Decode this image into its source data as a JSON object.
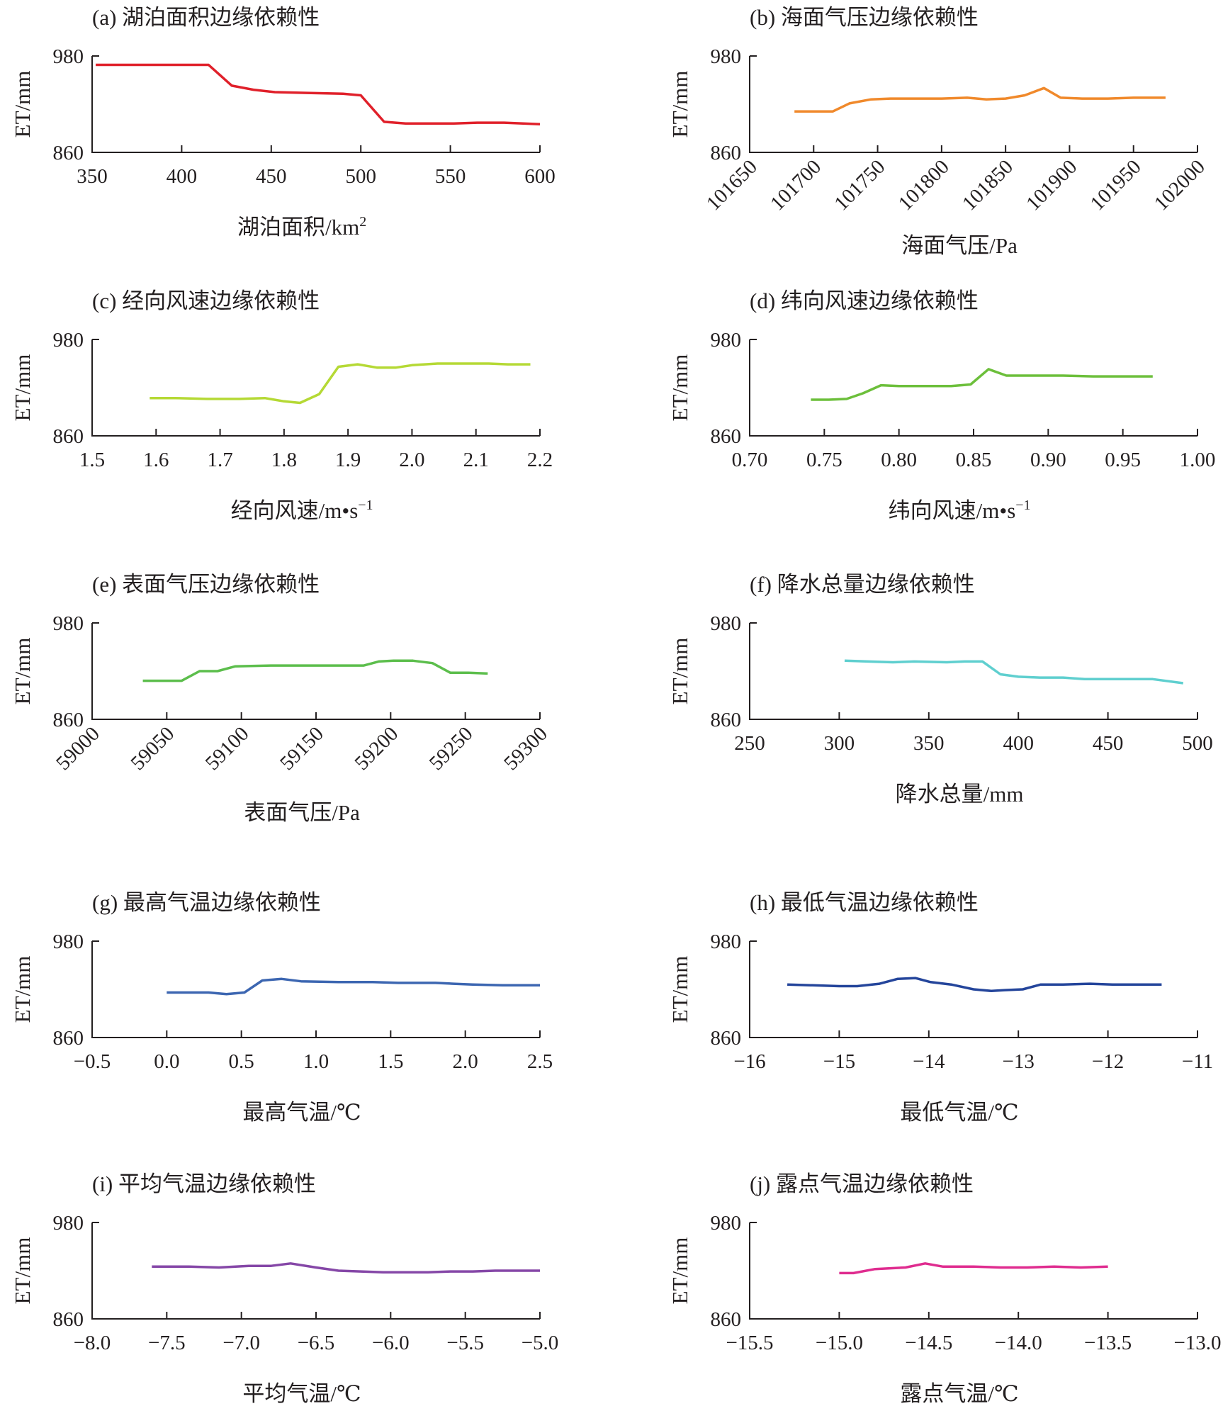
{
  "chart_data": [
    {
      "type": "line",
      "title": "(a) 湖泊面积边缘依赖性",
      "xlabel": "湖泊面积/km",
      "xlabel_sup": "2",
      "ylabel": "ET/mm",
      "xlim": [
        350,
        600
      ],
      "ylim": [
        860,
        980
      ],
      "xticks": [
        350,
        400,
        450,
        500,
        550,
        600
      ],
      "xtick_labels": [
        "350",
        "400",
        "450",
        "500",
        "550",
        "600"
      ],
      "yticks": [
        860,
        980
      ],
      "rotated_xticks": false,
      "color": "#e0202a",
      "x": [
        352,
        380,
        400,
        415,
        428,
        440,
        452,
        470,
        490,
        500,
        513,
        525,
        540,
        552,
        565,
        580,
        600
      ],
      "y": [
        969,
        969,
        969,
        969,
        943,
        938,
        935,
        934,
        933,
        931,
        898,
        896,
        896,
        896,
        897,
        897,
        895
      ]
    },
    {
      "type": "line",
      "title": "(b) 海面气压边缘依赖性",
      "xlabel": "海面气压/Pa",
      "ylabel": "ET/mm",
      "xlim": [
        101650,
        102000
      ],
      "ylim": [
        860,
        980
      ],
      "xticks": [
        101650,
        101700,
        101750,
        101800,
        101850,
        101900,
        101950,
        102000
      ],
      "xtick_labels": [
        "101650",
        "101700",
        "101750",
        "101800",
        "101850",
        "101900",
        "101950",
        "102000"
      ],
      "yticks": [
        860,
        980
      ],
      "rotated_xticks": true,
      "color": "#f0892b",
      "x": [
        101685,
        101700,
        101715,
        101728,
        101745,
        101760,
        101780,
        101800,
        101820,
        101835,
        101850,
        101865,
        101880,
        101893,
        101910,
        101930,
        101950,
        101975
      ],
      "y": [
        911,
        911,
        911,
        921,
        926,
        927,
        927,
        927,
        928,
        926,
        927,
        931,
        940,
        928,
        927,
        927,
        928,
        928
      ]
    },
    {
      "type": "line",
      "title": "(c) 经向风速边缘依赖性",
      "xlabel": "经向风速/m•s",
      "xlabel_sup": "−1",
      "ylabel": "ET/mm",
      "xlim": [
        1.5,
        2.2
      ],
      "ylim": [
        860,
        980
      ],
      "xticks": [
        1.5,
        1.6,
        1.7,
        1.8,
        1.9,
        2.0,
        2.1,
        2.2
      ],
      "xtick_labels": [
        "1.5",
        "1.6",
        "1.7",
        "1.8",
        "1.9",
        "2.0",
        "2.1",
        "2.2"
      ],
      "yticks": [
        860,
        980
      ],
      "rotated_xticks": false,
      "color": "#b5d935",
      "x": [
        1.59,
        1.63,
        1.68,
        1.73,
        1.77,
        1.8,
        1.825,
        1.855,
        1.885,
        1.915,
        1.945,
        1.975,
        2.0,
        2.04,
        2.08,
        2.12,
        2.15,
        2.185
      ],
      "y": [
        907,
        907,
        906,
        906,
        907,
        903,
        901,
        912,
        946,
        949,
        945,
        945,
        948,
        950,
        950,
        950,
        949,
        949
      ]
    },
    {
      "type": "line",
      "title": "(d) 纬向风速边缘依赖性",
      "xlabel": "纬向风速/m•s",
      "xlabel_sup": "−1",
      "ylabel": "ET/mm",
      "xlim": [
        0.7,
        1.0
      ],
      "ylim": [
        860,
        980
      ],
      "xticks": [
        0.7,
        0.75,
        0.8,
        0.85,
        0.9,
        0.95,
        1.0
      ],
      "xtick_labels": [
        "0.70",
        "0.75",
        "0.80",
        "0.85",
        "0.90",
        "0.95",
        "1.00"
      ],
      "yticks": [
        860,
        980
      ],
      "rotated_xticks": false,
      "color": "#6cbf3b",
      "x": [
        0.741,
        0.753,
        0.765,
        0.776,
        0.788,
        0.8,
        0.82,
        0.835,
        0.848,
        0.86,
        0.872,
        0.89,
        0.91,
        0.93,
        0.95,
        0.97
      ],
      "y": [
        905,
        905,
        906,
        913,
        923,
        922,
        922,
        922,
        924,
        943,
        935,
        935,
        935,
        934,
        934,
        934
      ]
    },
    {
      "type": "line",
      "title": "(e) 表面气压边缘依赖性",
      "xlabel": "表面气压/Pa",
      "ylabel": "ET/mm",
      "xlim": [
        59000,
        59300
      ],
      "ylim": [
        860,
        980
      ],
      "xticks": [
        59000,
        59050,
        59100,
        59150,
        59200,
        59250,
        59300
      ],
      "xtick_labels": [
        "59000",
        "59050",
        "59100",
        "59150",
        "59200",
        "59250",
        "59300"
      ],
      "yticks": [
        860,
        980
      ],
      "rotated_xticks": true,
      "color": "#5cbe4c",
      "x": [
        59034,
        59060,
        59072,
        59084,
        59096,
        59120,
        59145,
        59170,
        59182,
        59192,
        59202,
        59215,
        59228,
        59240,
        59252,
        59265
      ],
      "y": [
        908,
        908,
        920,
        920,
        926,
        927,
        927,
        927,
        927,
        932,
        933,
        933,
        930,
        918,
        918,
        917
      ]
    },
    {
      "type": "line",
      "title": "(f) 降水总量边缘依赖性",
      "xlabel": "降水总量/mm",
      "ylabel": "ET/mm",
      "xlim": [
        250,
        500
      ],
      "ylim": [
        860,
        980
      ],
      "xticks": [
        250,
        300,
        350,
        400,
        450,
        500
      ],
      "xtick_labels": [
        "250",
        "300",
        "350",
        "400",
        "450",
        "500"
      ],
      "yticks": [
        860,
        980
      ],
      "rotated_xticks": false,
      "color": "#5fcfcf",
      "x": [
        303,
        316,
        330,
        342,
        360,
        370,
        380,
        390,
        400,
        412,
        425,
        437,
        450,
        465,
        475,
        492
      ],
      "y": [
        933,
        932,
        931,
        932,
        931,
        932,
        932,
        916,
        913,
        912,
        912,
        910,
        910,
        910,
        910,
        905
      ]
    },
    {
      "type": "line",
      "title": "(g) 最高气温边缘依赖性",
      "xlabel": "最高气温/℃",
      "ylabel": "ET/mm",
      "xlim": [
        -0.5,
        2.5
      ],
      "ylim": [
        860,
        980
      ],
      "xticks": [
        -0.5,
        0.0,
        0.5,
        1.0,
        1.5,
        2.0,
        2.5
      ],
      "xtick_labels": [
        "−0.5",
        "0.0",
        "0.5",
        "1.0",
        "1.5",
        "2.0",
        "2.5"
      ],
      "yticks": [
        860,
        980
      ],
      "rotated_xticks": false,
      "color": "#3c66b1",
      "x": [
        0.0,
        0.15,
        0.28,
        0.4,
        0.52,
        0.64,
        0.77,
        0.9,
        1.15,
        1.38,
        1.55,
        1.8,
        1.92,
        2.05,
        2.25,
        2.5
      ],
      "y": [
        916,
        916,
        916,
        914,
        916,
        931,
        933,
        930,
        929,
        929,
        928,
        928,
        927,
        926,
        925,
        925
      ]
    },
    {
      "type": "line",
      "title": "(h) 最低气温边缘依赖性",
      "xlabel": "最低气温/℃",
      "ylabel": "ET/mm",
      "xlim": [
        -16,
        -11
      ],
      "ylim": [
        860,
        980
      ],
      "xticks": [
        -16,
        -15,
        -14,
        -13,
        -12,
        -11
      ],
      "xtick_labels": [
        "−16",
        "−15",
        "−14",
        "−13",
        "−12",
        "−11"
      ],
      "yticks": [
        860,
        980
      ],
      "rotated_xticks": false,
      "color": "#24459b",
      "x": [
        -15.58,
        -15.3,
        -15.0,
        -14.8,
        -14.55,
        -14.35,
        -14.15,
        -13.98,
        -13.75,
        -13.5,
        -13.3,
        -13.15,
        -12.95,
        -12.75,
        -12.5,
        -12.2,
        -11.95,
        -11.4
      ],
      "y": [
        926,
        925,
        924,
        924,
        927,
        933,
        934,
        929,
        926,
        920,
        918,
        919,
        920,
        926,
        926,
        927,
        926,
        926
      ]
    },
    {
      "type": "line",
      "title": "(i) 平均气温边缘依赖性",
      "xlabel": "平均气温/℃",
      "ylabel": "ET/mm",
      "xlim": [
        -8.0,
        -5.0
      ],
      "ylim": [
        860,
        980
      ],
      "xticks": [
        -8.0,
        -7.5,
        -7.0,
        -6.5,
        -6.0,
        -5.5,
        -5.0
      ],
      "xtick_labels": [
        "−8.0",
        "−7.5",
        "−7.0",
        "−6.5",
        "−6.0",
        "−5.5",
        "−5.0"
      ],
      "yticks": [
        860,
        980
      ],
      "rotated_xticks": false,
      "color": "#8547a7",
      "x": [
        -7.6,
        -7.35,
        -7.15,
        -6.95,
        -6.8,
        -6.67,
        -6.5,
        -6.35,
        -6.2,
        -6.05,
        -5.9,
        -5.75,
        -5.6,
        -5.45,
        -5.3,
        -5.15,
        -5.0
      ],
      "y": [
        925,
        925,
        924,
        926,
        926,
        929,
        924,
        920,
        919,
        918,
        918,
        918,
        919,
        919,
        920,
        920,
        920
      ]
    },
    {
      "type": "line",
      "title": "(j) 露点气温边缘依赖性",
      "xlabel": "露点气温/℃",
      "ylabel": "ET/mm",
      "xlim": [
        -15.5,
        -13.0
      ],
      "ylim": [
        860,
        980
      ],
      "xticks": [
        -15.5,
        -15.0,
        -14.5,
        -14.0,
        -13.5,
        -13.0
      ],
      "xtick_labels": [
        "−15.5",
        "−15.0",
        "−14.5",
        "−14.0",
        "−13.5",
        "−13.0"
      ],
      "yticks": [
        860,
        980
      ],
      "rotated_xticks": false,
      "color": "#df2c8f",
      "x": [
        -15.0,
        -14.92,
        -14.8,
        -14.63,
        -14.52,
        -14.42,
        -14.25,
        -14.1,
        -13.95,
        -13.8,
        -13.65,
        -13.5
      ],
      "y": [
        917,
        917,
        922,
        924,
        929,
        925,
        925,
        924,
        924,
        925,
        924,
        925
      ]
    }
  ]
}
